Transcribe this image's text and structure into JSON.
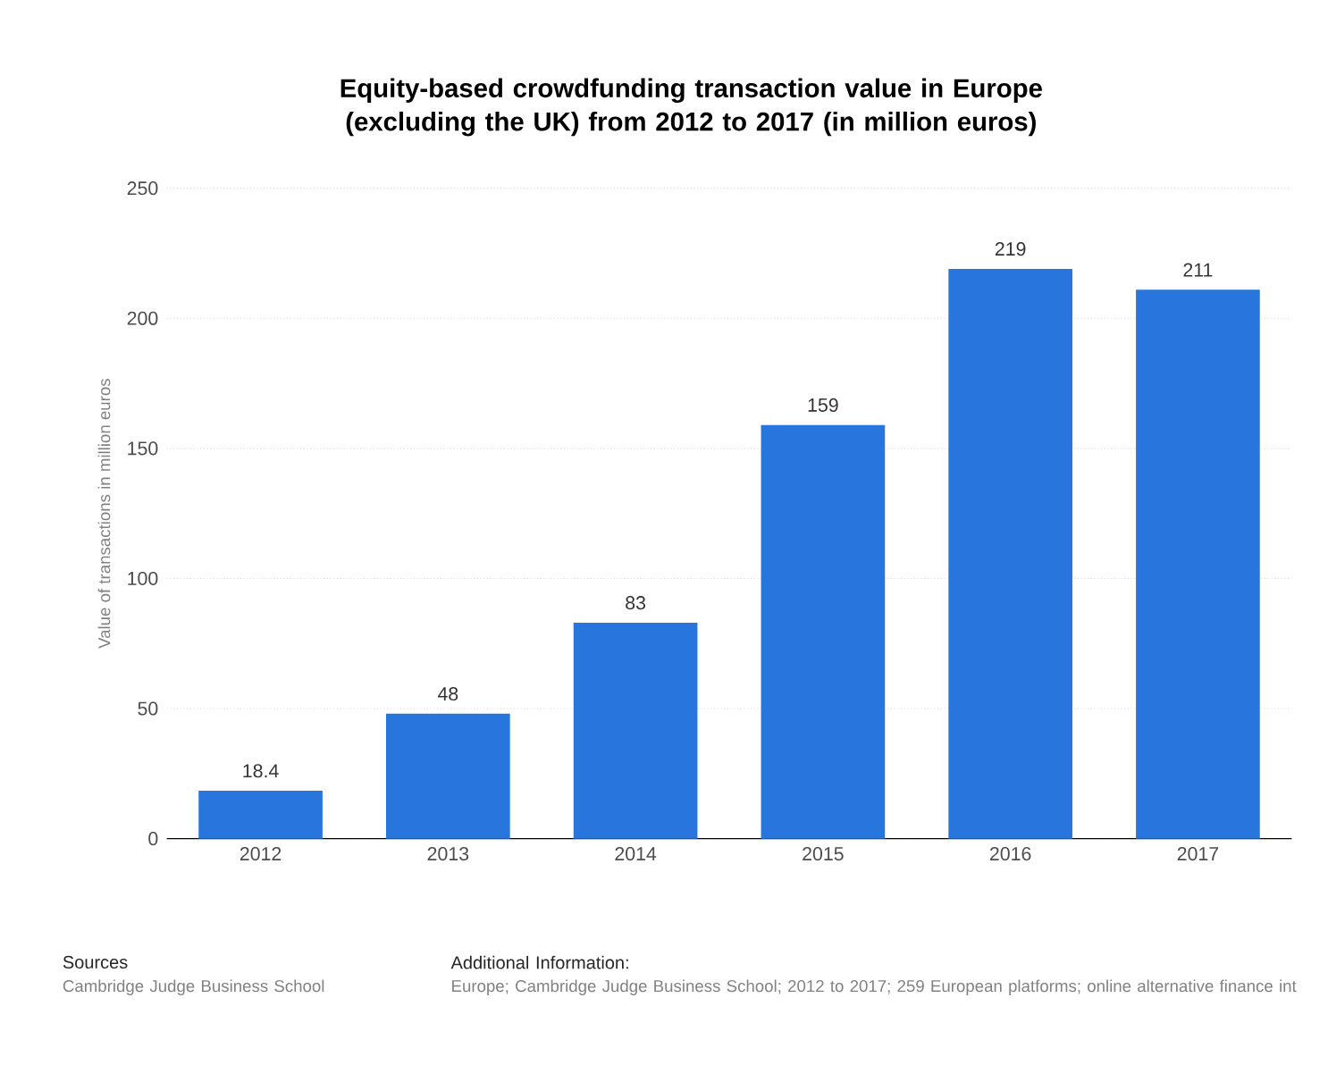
{
  "chart_data": {
    "type": "bar",
    "title": "Equity-based crowdfunding transaction value in Europe (excluding the UK) from 2012 to 2017 (in million euros)",
    "ylabel": "Value of transactions in million euros",
    "categories": [
      "2012",
      "2013",
      "2014",
      "2015",
      "2016",
      "2017"
    ],
    "values": [
      18.4,
      48,
      83,
      159,
      219,
      211
    ],
    "color": "#2876dd",
    "ylim": [
      0,
      250
    ],
    "yticks": [
      0,
      50,
      100,
      150,
      200,
      250
    ],
    "grid": "y",
    "data_labels": true,
    "annotations": [
      "Sources",
      "Cambridge Judge Business School",
      "Additional Information:",
      "Europe; Cambridge Judge Business School; 2012 to 2017; 259 European platforms; online alternative finance int"
    ]
  }
}
